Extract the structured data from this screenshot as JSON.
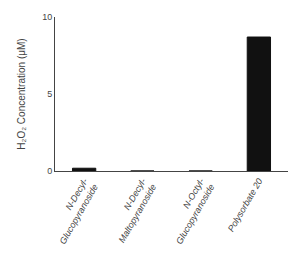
{
  "chart_data": {
    "type": "bar",
    "categories": [
      "N-Decyl-\nGlucopyranoside",
      "N-Decyl-\nMaltopyranoside",
      "N-Octyl-\nGlucopyranoside",
      "Polysorbate 20"
    ],
    "values": [
      0.18,
      0.0,
      0.0,
      8.7
    ],
    "color": "#111111",
    "ylabel": "H₂O₂ Concentration (μM)",
    "ylim": [
      0,
      10
    ],
    "yticks": [
      0,
      5,
      10
    ],
    "grid": false
  }
}
